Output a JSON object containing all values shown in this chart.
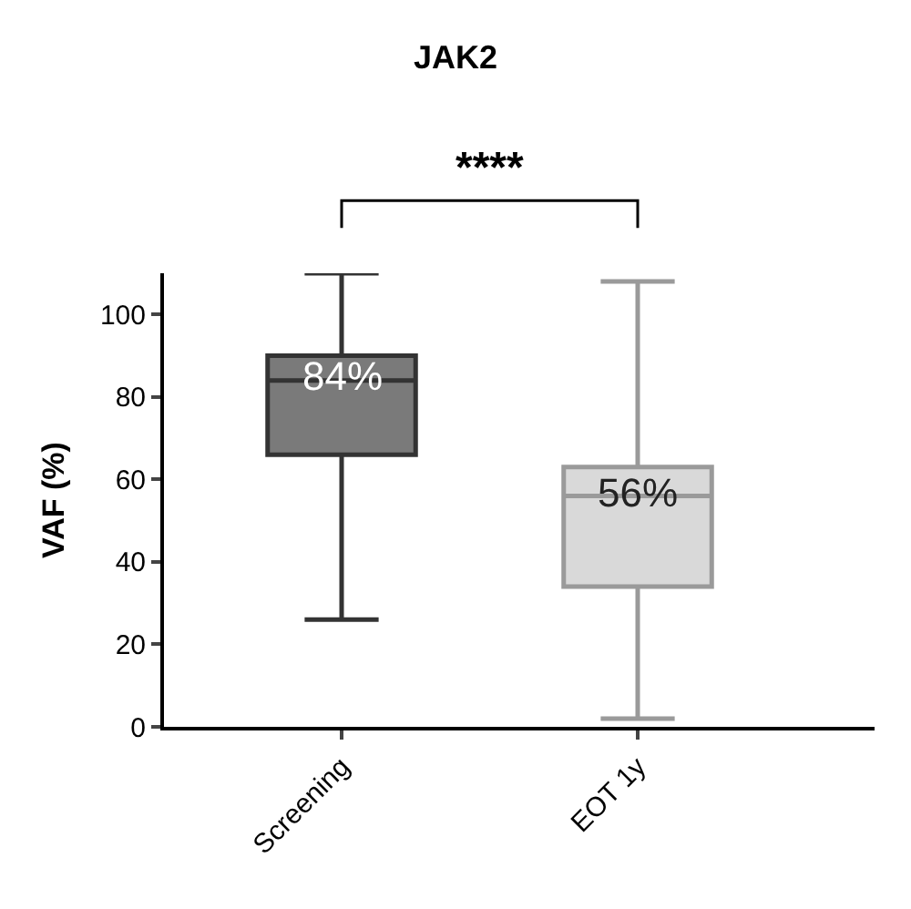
{
  "chart_data": {
    "type": "box",
    "title": "JAK2",
    "ylabel": "VAF (%)",
    "categories": [
      "Screening",
      "EOT 1y"
    ],
    "colors": [
      "#7a7a7a",
      "#d9d9d9"
    ],
    "boxes": [
      {
        "low": 26,
        "q1": 66,
        "median": 84,
        "q3": 90,
        "high": 110
      },
      {
        "low": 2,
        "q1": 34,
        "median": 56,
        "q3": 63,
        "high": 108
      }
    ],
    "value_labels": [
      "84%",
      "56%"
    ],
    "annotations": [
      "****"
    ],
    "ylim": [
      0,
      110
    ],
    "yticks": [
      0,
      20,
      40,
      60,
      80,
      100
    ],
    "grid": false
  }
}
